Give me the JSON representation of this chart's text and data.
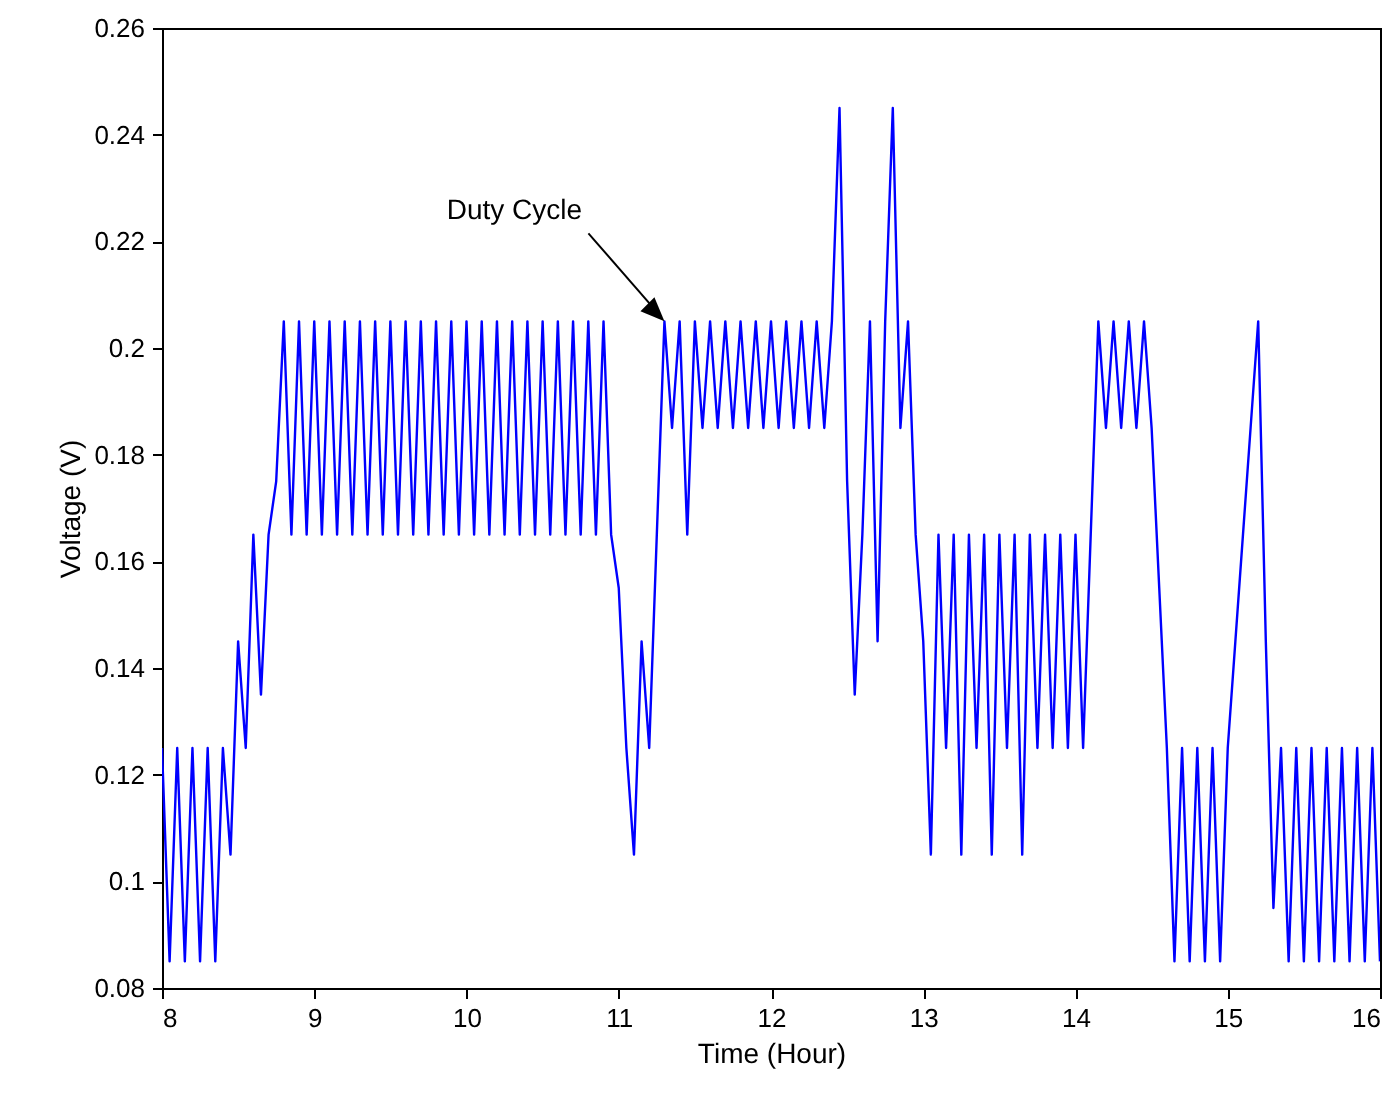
{
  "chart_data": {
    "type": "line",
    "xlabel": "Time (Hour)",
    "ylabel": "Voltage (V)",
    "xlim": [
      8,
      16
    ],
    "xticks": [
      8,
      9,
      10,
      11,
      12,
      13,
      14,
      15,
      16
    ],
    "ylim": [
      0.08,
      0.26
    ],
    "yticks": [
      0.08,
      0.1,
      0.12,
      0.14,
      0.16,
      0.18,
      0.2,
      0.22,
      0.24,
      0.26
    ],
    "grid": false,
    "marker": "none",
    "line_style": "solid",
    "annotations": [
      {
        "text": "Duty Cycle",
        "x": 11.3,
        "y": 0.205
      }
    ],
    "x": [
      8.0,
      8.05,
      8.1,
      8.15,
      8.2,
      8.25,
      8.3,
      8.35,
      8.4,
      8.45,
      8.5,
      8.55,
      8.6,
      8.65,
      8.7,
      8.75,
      8.8,
      8.85,
      8.9,
      8.95,
      9.0,
      9.05,
      9.1,
      9.15,
      9.2,
      9.25,
      9.3,
      9.35,
      9.4,
      9.45,
      9.5,
      9.55,
      9.6,
      9.65,
      9.7,
      9.75,
      9.8,
      9.85,
      9.9,
      9.95,
      10.0,
      10.05,
      10.1,
      10.15,
      10.2,
      10.25,
      10.3,
      10.35,
      10.4,
      10.45,
      10.5,
      10.55,
      10.6,
      10.65,
      10.7,
      10.75,
      10.8,
      10.85,
      10.9,
      10.95,
      11.0,
      11.05,
      11.1,
      11.15,
      11.2,
      11.25,
      11.3,
      11.35,
      11.4,
      11.45,
      11.5,
      11.55,
      11.6,
      11.65,
      11.7,
      11.75,
      11.8,
      11.85,
      11.9,
      11.95,
      12.0,
      12.05,
      12.1,
      12.15,
      12.2,
      12.25,
      12.3,
      12.35,
      12.4,
      12.45,
      12.5,
      12.55,
      12.6,
      12.65,
      12.7,
      12.75,
      12.8,
      12.85,
      12.9,
      12.95,
      13.0,
      13.05,
      13.1,
      13.15,
      13.2,
      13.25,
      13.3,
      13.35,
      13.4,
      13.45,
      13.5,
      13.55,
      13.6,
      13.65,
      13.7,
      13.75,
      13.8,
      13.85,
      13.9,
      13.95,
      14.0,
      14.05,
      14.1,
      14.15,
      14.2,
      14.25,
      14.3,
      14.35,
      14.4,
      14.45,
      14.5,
      14.55,
      14.6,
      14.65,
      14.7,
      14.75,
      14.8,
      14.85,
      14.9,
      14.95,
      15.0,
      15.05,
      15.1,
      15.15,
      15.2,
      15.25,
      15.3,
      15.35,
      15.4,
      15.45,
      15.5,
      15.55,
      15.6,
      15.65,
      15.7,
      15.75,
      15.8,
      15.85,
      15.9,
      15.95,
      16.0
    ],
    "series": [
      {
        "color": "#0000ff",
        "values": [
          0.125,
          0.085,
          0.125,
          0.085,
          0.125,
          0.085,
          0.125,
          0.085,
          0.125,
          0.105,
          0.145,
          0.125,
          0.165,
          0.135,
          0.165,
          0.175,
          0.205,
          0.165,
          0.205,
          0.165,
          0.205,
          0.165,
          0.205,
          0.165,
          0.205,
          0.165,
          0.205,
          0.165,
          0.205,
          0.165,
          0.205,
          0.165,
          0.205,
          0.165,
          0.205,
          0.165,
          0.205,
          0.165,
          0.205,
          0.165,
          0.205,
          0.165,
          0.205,
          0.165,
          0.205,
          0.165,
          0.205,
          0.165,
          0.205,
          0.165,
          0.205,
          0.165,
          0.205,
          0.165,
          0.205,
          0.165,
          0.205,
          0.165,
          0.205,
          0.165,
          0.155,
          0.125,
          0.105,
          0.145,
          0.125,
          0.165,
          0.205,
          0.185,
          0.205,
          0.165,
          0.205,
          0.185,
          0.205,
          0.185,
          0.205,
          0.185,
          0.205,
          0.185,
          0.205,
          0.185,
          0.205,
          0.185,
          0.205,
          0.185,
          0.205,
          0.185,
          0.205,
          0.185,
          0.205,
          0.245,
          0.175,
          0.135,
          0.165,
          0.205,
          0.145,
          0.205,
          0.245,
          0.185,
          0.205,
          0.165,
          0.145,
          0.105,
          0.165,
          0.125,
          0.165,
          0.105,
          0.165,
          0.125,
          0.165,
          0.105,
          0.165,
          0.125,
          0.165,
          0.105,
          0.165,
          0.125,
          0.165,
          0.125,
          0.165,
          0.125,
          0.165,
          0.125,
          0.165,
          0.205,
          0.185,
          0.205,
          0.185,
          0.205,
          0.185,
          0.205,
          0.185,
          0.155,
          0.125,
          0.085,
          0.125,
          0.085,
          0.125,
          0.085,
          0.125,
          0.085,
          0.125,
          0.145,
          0.165,
          0.185,
          0.205,
          0.145,
          0.095,
          0.125,
          0.085,
          0.125,
          0.085,
          0.125,
          0.085,
          0.125,
          0.085,
          0.125,
          0.085,
          0.125,
          0.085,
          0.125,
          0.085
        ]
      }
    ]
  }
}
